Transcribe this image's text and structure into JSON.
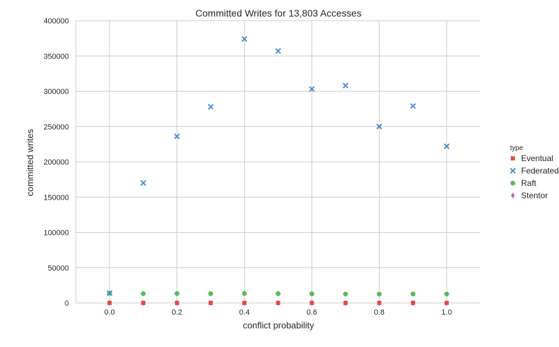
{
  "chart_data": {
    "type": "scatter",
    "title": "Committed Writes for 13,803 Accesses",
    "xlabel": "conflict probability",
    "ylabel": "committed writes",
    "xlim": [
      -0.1,
      1.1
    ],
    "ylim": [
      0,
      400000
    ],
    "x_ticks": [
      "0.0",
      "0.2",
      "0.4",
      "0.6",
      "0.8",
      "1.0"
    ],
    "y_ticks": [
      "0",
      "50000",
      "100000",
      "150000",
      "200000",
      "250000",
      "300000",
      "350000",
      "400000"
    ],
    "grid": true,
    "legend": {
      "title": "type",
      "placement": "right"
    },
    "x": [
      0.0,
      0.1,
      0.2,
      0.3,
      0.4,
      0.5,
      0.6,
      0.7,
      0.8,
      0.9,
      1.0
    ],
    "series": [
      {
        "name": "Eventual",
        "marker": "square",
        "color": "#e24a4a",
        "values": [
          0,
          0,
          0,
          0,
          0,
          0,
          0,
          0,
          0,
          0,
          0
        ]
      },
      {
        "name": "Federated",
        "marker": "x",
        "color": "#4f8fd1",
        "values": [
          13803,
          170000,
          236000,
          278000,
          374000,
          357000,
          303000,
          308000,
          250000,
          279000,
          222000
        ]
      },
      {
        "name": "Raft",
        "marker": "circle",
        "color": "#5cb85c",
        "values": [
          13803,
          13200,
          13300,
          13200,
          13300,
          13200,
          12900,
          12600,
          12500,
          12700,
          12600
        ]
      },
      {
        "name": "Stentor",
        "marker": "diamond",
        "color": "#b565b5",
        "values": [
          0,
          0,
          0,
          0,
          0,
          0,
          0,
          0,
          0,
          0,
          0
        ]
      }
    ]
  }
}
